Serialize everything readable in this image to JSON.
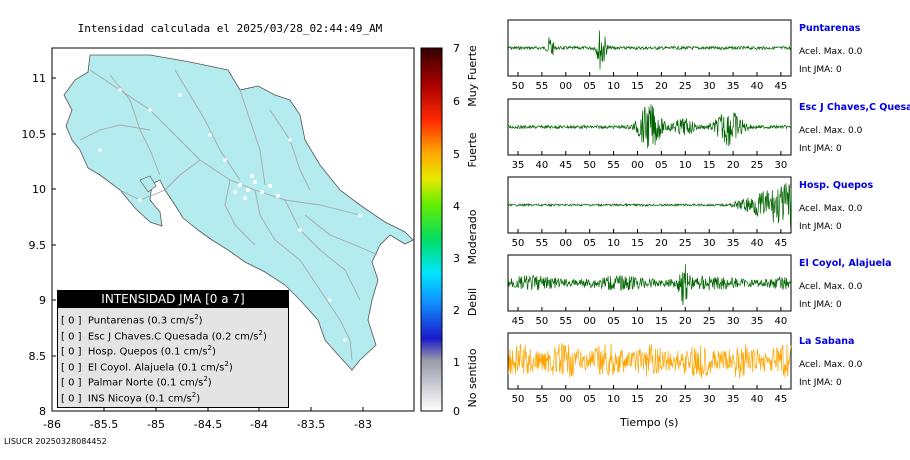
{
  "map": {
    "title": "Intensidad calculada el 2025/03/28_02:44:49_AM",
    "x_ticks": [
      "-86",
      "-85.5",
      "-85",
      "-84.5",
      "-84",
      "-83.5",
      "-83"
    ],
    "y_ticks": [
      "11",
      "10.5",
      "10",
      "9.5",
      "9",
      "8.5",
      "8"
    ],
    "xlim": [
      -86,
      -82.5
    ],
    "ylim": [
      8,
      11.25
    ]
  },
  "colorbar": {
    "ticks": [
      "7",
      "6",
      "5",
      "4",
      "3",
      "2",
      "1",
      "0"
    ],
    "labels": [
      "Muy Fuerte",
      "Fuerte",
      "Moderado",
      "Debil",
      "No sentido"
    ]
  },
  "legend": {
    "title": "INTENSIDAD JMA [0 a 7]",
    "rows": [
      {
        "level": "[ 0 ]",
        "name": "Puntarenas",
        "accel": "(0.3 cm/s",
        "sup": "2",
        "close": ")"
      },
      {
        "level": "[ 0 ]",
        "name": "Esc J Chaves.C Quesada",
        "accel": "(0.2 cm/s",
        "sup": "2",
        "close": ")"
      },
      {
        "level": "[ 0 ]",
        "name": "Hosp. Quepos",
        "accel": "(0.1 cm/s",
        "sup": "2",
        "close": ")"
      },
      {
        "level": "[ 0 ]",
        "name": "El Coyol. Alajuela",
        "accel": "(0.1 cm/s",
        "sup": "2",
        "close": ")"
      },
      {
        "level": "[ 0 ]",
        "name": "Palmar Norte",
        "accel": "(0.1 cm/s",
        "sup": "2",
        "close": ")"
      },
      {
        "level": "[ 0 ]",
        "name": "INS Nicoya",
        "accel": "(0.1 cm/s",
        "sup": "2",
        "close": ")"
      }
    ]
  },
  "footer": "LISUCR 20250328084452",
  "seismograms": {
    "xlabel": "Tiempo (s)",
    "panels": [
      {
        "name": "Puntarenas",
        "accel": "Acel. Max. 0.0",
        "int": "Int JMA: 0",
        "color": "#006400",
        "ticks": [
          "50",
          "55",
          "00",
          "05",
          "10",
          "15",
          "20",
          "25",
          "30",
          "35",
          "40",
          "45"
        ]
      },
      {
        "name": "Esc J Chaves,C Quesada",
        "accel": "Acel. Max. 0.0",
        "int": "Int JMA: 0",
        "color": "#006400",
        "ticks": [
          "35",
          "40",
          "45",
          "50",
          "55",
          "00",
          "05",
          "10",
          "15",
          "20",
          "25",
          "30"
        ]
      },
      {
        "name": "Hosp. Quepos",
        "accel": "Acel. Max. 0.0",
        "int": "Int JMA: 0",
        "color": "#006400",
        "ticks": [
          "50",
          "55",
          "00",
          "05",
          "10",
          "15",
          "20",
          "25",
          "30",
          "35",
          "40",
          "45"
        ]
      },
      {
        "name": "El Coyol, Alajuela",
        "accel": "Acel. Max. 0.0",
        "int": "Int JMA: 0",
        "color": "#006400",
        "ticks": [
          "45",
          "50",
          "55",
          "00",
          "05",
          "10",
          "15",
          "20",
          "25",
          "30",
          "35",
          "40"
        ]
      },
      {
        "name": "La Sabana",
        "accel": "Acel. Max. 0.0",
        "int": "Int JMA: 0",
        "color": "#ffa500",
        "ticks": [
          "50",
          "55",
          "00",
          "05",
          "10",
          "15",
          "20",
          "25",
          "30",
          "35",
          "40",
          "45"
        ]
      }
    ]
  }
}
